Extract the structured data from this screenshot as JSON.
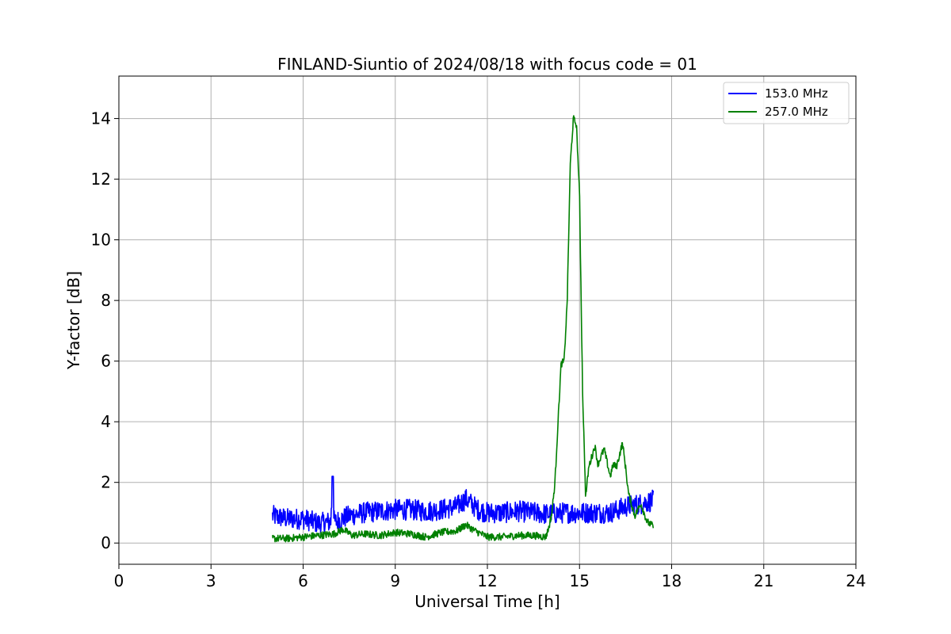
{
  "chart_data": {
    "type": "line",
    "title": "FINLAND-Siuntio of 2024/08/18 with focus code = 01",
    "xlabel": "Universal Time [h]",
    "ylabel": "Y-factor [dB]",
    "xlim": [
      0,
      24
    ],
    "ylim": [
      -0.7,
      15.4
    ],
    "xticks": [
      0,
      3,
      6,
      9,
      12,
      15,
      18,
      21,
      24
    ],
    "yticks": [
      0,
      2,
      4,
      6,
      8,
      10,
      12,
      14
    ],
    "grid": true,
    "legend_position": "top-right",
    "series": [
      {
        "name": " 153.0 MHz",
        "color": "#0000ff",
        "noise": 0.35,
        "x": [
          5.0,
          5.5,
          6.0,
          6.5,
          6.9,
          6.95,
          7.0,
          7.05,
          7.5,
          8.0,
          8.5,
          9.0,
          9.5,
          10.0,
          10.5,
          11.0,
          11.3,
          11.7,
          12.0,
          12.5,
          13.0,
          13.5,
          14.0,
          14.5,
          15.0,
          15.5,
          16.0,
          16.5,
          17.0,
          17.4
        ],
        "y": [
          0.9,
          0.8,
          0.8,
          0.65,
          0.7,
          1.7,
          0.75,
          0.7,
          0.9,
          1.0,
          1.05,
          1.1,
          1.1,
          1.05,
          1.1,
          1.2,
          1.45,
          1.1,
          1.0,
          1.0,
          1.05,
          1.0,
          0.95,
          1.0,
          1.0,
          1.0,
          1.0,
          1.2,
          1.3,
          1.4
        ]
      },
      {
        "name": " 257.0 MHz",
        "color": "#008000",
        "noise": 0.12,
        "x": [
          5.0,
          5.5,
          6.0,
          6.5,
          7.0,
          7.3,
          7.6,
          8.0,
          8.5,
          9.0,
          9.5,
          10.0,
          10.5,
          11.0,
          11.3,
          11.6,
          12.0,
          12.5,
          13.0,
          13.5,
          13.9,
          14.0,
          14.1,
          14.2,
          14.3,
          14.4,
          14.5,
          14.6,
          14.7,
          14.8,
          14.9,
          15.0,
          15.1,
          15.2,
          15.3,
          15.5,
          15.6,
          15.8,
          16.0,
          16.1,
          16.2,
          16.4,
          16.5,
          16.6,
          16.8,
          17.0,
          17.2,
          17.4
        ],
        "y": [
          0.15,
          0.15,
          0.2,
          0.25,
          0.3,
          0.45,
          0.25,
          0.3,
          0.25,
          0.35,
          0.3,
          0.2,
          0.35,
          0.4,
          0.6,
          0.4,
          0.2,
          0.2,
          0.25,
          0.25,
          0.2,
          0.5,
          1.0,
          2.0,
          4.0,
          5.9,
          6.0,
          8.0,
          12.5,
          14.0,
          13.8,
          11.5,
          5.0,
          1.5,
          2.5,
          3.2,
          2.6,
          3.1,
          2.2,
          2.6,
          2.5,
          3.3,
          2.5,
          1.6,
          0.9,
          1.3,
          0.7,
          0.55
        ]
      }
    ]
  }
}
